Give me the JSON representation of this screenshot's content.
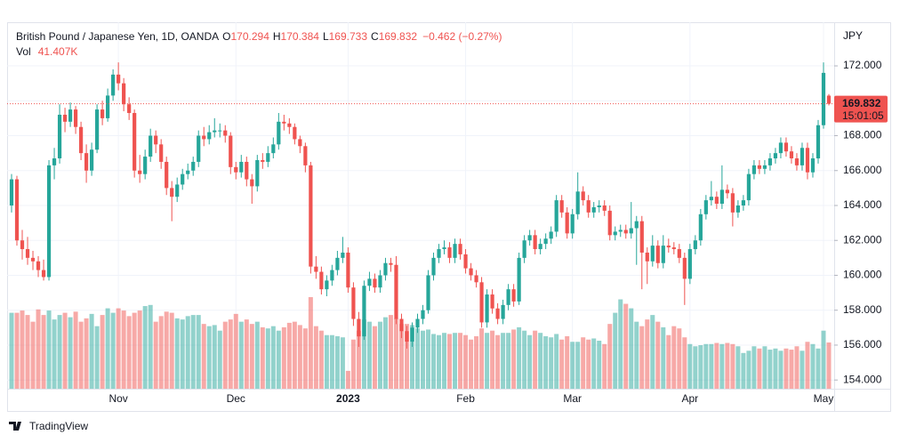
{
  "chart_data": {
    "type": "candlestick",
    "title": "British Pound / Japanese Yen, 1D, OANDA",
    "ohlc_letters": [
      "O",
      "H",
      "L",
      "C"
    ],
    "change_label": "−0.462 (−0.27%)",
    "volume_name": "Vol",
    "last_volume_label": "41.407K",
    "currency": "JPY",
    "countdown": "15:01:05",
    "up_color": "#26a69a",
    "down_color": "#ef5350",
    "ohlc": [
      [
        164.0,
        165.8,
        163.6,
        165.5
      ],
      [
        165.5,
        165.7,
        161.7,
        162.0
      ],
      [
        162.0,
        162.6,
        160.9,
        161.5
      ],
      [
        161.5,
        162.2,
        160.6,
        161.0
      ],
      [
        161.0,
        161.4,
        160.3,
        160.8
      ],
      [
        160.8,
        161.1,
        159.9,
        160.3
      ],
      [
        160.3,
        160.9,
        159.7,
        159.9
      ],
      [
        159.9,
        166.6,
        159.7,
        166.3
      ],
      [
        166.3,
        167.3,
        165.5,
        166.7
      ],
      [
        166.7,
        169.8,
        166.4,
        169.2
      ],
      [
        169.2,
        169.6,
        168.2,
        168.8
      ],
      [
        168.8,
        169.9,
        168.5,
        169.5
      ],
      [
        169.5,
        169.7,
        168.1,
        168.5
      ],
      [
        168.5,
        168.8,
        166.6,
        167.0
      ],
      [
        167.0,
        167.5,
        165.3,
        166.0
      ],
      [
        166.0,
        167.6,
        165.7,
        167.2
      ],
      [
        167.2,
        169.8,
        167.0,
        169.5
      ],
      [
        169.5,
        170.0,
        168.6,
        169.0
      ],
      [
        169.0,
        170.7,
        168.8,
        170.3
      ],
      [
        170.3,
        171.8,
        170.0,
        171.5
      ],
      [
        171.5,
        172.2,
        170.6,
        171.0
      ],
      [
        171.0,
        171.3,
        169.4,
        169.8
      ],
      [
        169.8,
        170.2,
        168.9,
        169.3
      ],
      [
        169.3,
        169.5,
        165.6,
        166.0
      ],
      [
        166.0,
        166.9,
        165.3,
        165.8
      ],
      [
        165.8,
        167.2,
        165.5,
        166.8
      ],
      [
        166.8,
        168.4,
        166.5,
        168.0
      ],
      [
        168.0,
        168.3,
        167.0,
        167.5
      ],
      [
        167.5,
        167.8,
        166.1,
        166.5
      ],
      [
        166.5,
        166.8,
        164.6,
        165.0
      ],
      [
        165.0,
        165.4,
        163.1,
        164.5
      ],
      [
        164.5,
        165.6,
        164.2,
        165.2
      ],
      [
        165.2,
        166.1,
        164.9,
        165.8
      ],
      [
        165.8,
        166.4,
        165.5,
        166.0
      ],
      [
        166.0,
        166.8,
        165.7,
        166.5
      ],
      [
        166.5,
        168.3,
        166.2,
        168.0
      ],
      [
        168.0,
        168.5,
        167.4,
        167.8
      ],
      [
        167.8,
        168.6,
        167.5,
        168.2
      ],
      [
        168.2,
        169.0,
        167.9,
        168.3
      ],
      [
        168.3,
        168.7,
        167.9,
        168.3
      ],
      [
        168.3,
        168.6,
        167.6,
        168.0
      ],
      [
        168.0,
        168.2,
        165.8,
        166.2
      ],
      [
        166.2,
        166.5,
        165.5,
        165.9
      ],
      [
        165.9,
        166.9,
        165.6,
        166.5
      ],
      [
        166.5,
        166.8,
        165.1,
        165.5
      ],
      [
        165.5,
        165.8,
        164.1,
        165.1
      ],
      [
        165.1,
        166.9,
        164.8,
        166.6
      ],
      [
        166.6,
        167.0,
        166.1,
        166.5
      ],
      [
        166.5,
        167.4,
        166.2,
        167.0
      ],
      [
        167.0,
        167.9,
        166.7,
        167.5
      ],
      [
        167.5,
        169.3,
        167.2,
        168.8
      ],
      [
        168.8,
        169.2,
        168.3,
        168.7
      ],
      [
        168.7,
        169.0,
        168.1,
        168.5
      ],
      [
        168.5,
        168.7,
        167.5,
        167.8
      ],
      [
        167.8,
        168.0,
        167.0,
        167.4
      ],
      [
        167.4,
        167.6,
        165.9,
        166.3
      ],
      [
        166.3,
        166.5,
        160.1,
        160.5
      ],
      [
        160.5,
        161.1,
        159.8,
        160.2
      ],
      [
        160.2,
        160.5,
        158.9,
        159.2
      ],
      [
        159.2,
        160.0,
        158.8,
        159.7
      ],
      [
        159.7,
        160.6,
        159.4,
        160.3
      ],
      [
        160.3,
        161.4,
        160.0,
        161.0
      ],
      [
        161.0,
        162.2,
        160.7,
        161.3
      ],
      [
        161.3,
        161.6,
        159.0,
        159.3
      ],
      [
        159.3,
        159.6,
        157.1,
        157.5
      ],
      [
        157.5,
        157.9,
        155.9,
        156.5
      ],
      [
        156.5,
        159.7,
        156.3,
        159.4
      ],
      [
        159.4,
        160.2,
        159.1,
        159.8
      ],
      [
        159.8,
        160.1,
        159.0,
        159.3
      ],
      [
        159.3,
        160.3,
        159.0,
        160.0
      ],
      [
        160.0,
        161.0,
        159.7,
        160.7
      ],
      [
        160.7,
        161.0,
        160.2,
        160.6
      ],
      [
        160.6,
        161.1,
        157.2,
        157.5
      ],
      [
        157.5,
        157.8,
        156.4,
        156.8
      ],
      [
        156.8,
        157.1,
        155.8,
        156.2
      ],
      [
        156.2,
        157.3,
        155.9,
        157.0
      ],
      [
        157.0,
        157.8,
        156.7,
        157.5
      ],
      [
        157.5,
        158.3,
        157.2,
        158.0
      ],
      [
        158.0,
        160.3,
        157.8,
        160.0
      ],
      [
        160.0,
        161.3,
        159.7,
        161.0
      ],
      [
        161.0,
        161.8,
        160.7,
        161.5
      ],
      [
        161.5,
        162.0,
        161.2,
        161.6
      ],
      [
        161.6,
        161.9,
        160.7,
        161.0
      ],
      [
        161.0,
        162.1,
        160.7,
        161.8
      ],
      [
        161.8,
        162.1,
        160.9,
        161.2
      ],
      [
        161.2,
        161.5,
        160.1,
        160.4
      ],
      [
        160.4,
        160.7,
        159.7,
        160.0
      ],
      [
        160.0,
        160.3,
        159.3,
        159.6
      ],
      [
        159.6,
        159.9,
        157.0,
        157.3
      ],
      [
        157.3,
        159.2,
        157.0,
        158.9
      ],
      [
        158.9,
        159.2,
        157.8,
        158.1
      ],
      [
        158.1,
        158.4,
        157.2,
        157.5
      ],
      [
        157.5,
        158.6,
        157.2,
        158.3
      ],
      [
        158.3,
        159.5,
        158.0,
        159.2
      ],
      [
        159.2,
        159.5,
        158.2,
        158.5
      ],
      [
        158.5,
        161.3,
        158.3,
        161.0
      ],
      [
        161.0,
        162.3,
        160.7,
        162.0
      ],
      [
        162.0,
        162.6,
        161.7,
        162.3
      ],
      [
        162.3,
        162.6,
        161.2,
        161.5
      ],
      [
        161.5,
        162.1,
        161.2,
        161.8
      ],
      [
        161.8,
        162.4,
        161.5,
        162.1
      ],
      [
        162.1,
        162.8,
        161.8,
        162.5
      ],
      [
        162.5,
        164.6,
        162.2,
        164.3
      ],
      [
        164.3,
        164.6,
        163.3,
        163.6
      ],
      [
        163.6,
        163.9,
        162.1,
        162.4
      ],
      [
        162.4,
        163.8,
        162.1,
        163.5
      ],
      [
        163.5,
        165.9,
        163.2,
        164.8
      ],
      [
        164.8,
        165.1,
        164.0,
        164.3
      ],
      [
        164.3,
        164.6,
        163.3,
        163.6
      ],
      [
        163.6,
        164.2,
        163.3,
        163.9
      ],
      [
        163.9,
        164.3,
        163.6,
        164.0
      ],
      [
        164.0,
        164.3,
        163.4,
        163.7
      ],
      [
        163.7,
        164.0,
        162.0,
        162.3
      ],
      [
        162.3,
        162.8,
        162.0,
        162.5
      ],
      [
        162.5,
        162.9,
        162.2,
        162.6
      ],
      [
        162.6,
        162.9,
        162.1,
        162.4
      ],
      [
        162.4,
        164.2,
        162.1,
        162.7
      ],
      [
        162.7,
        163.4,
        160.6,
        163.1
      ],
      [
        163.1,
        163.4,
        159.2,
        161.3
      ],
      [
        161.3,
        161.6,
        159.5,
        160.8
      ],
      [
        160.8,
        162.3,
        160.5,
        161.7
      ],
      [
        161.7,
        162.0,
        160.4,
        160.7
      ],
      [
        160.7,
        162.3,
        160.4,
        161.7
      ],
      [
        161.7,
        162.1,
        161.3,
        161.6
      ],
      [
        161.6,
        161.9,
        161.2,
        161.5
      ],
      [
        161.5,
        161.8,
        160.7,
        161.0
      ],
      [
        161.0,
        161.3,
        158.3,
        159.8
      ],
      [
        159.8,
        161.8,
        159.5,
        161.5
      ],
      [
        161.5,
        162.3,
        161.2,
        162.0
      ],
      [
        162.0,
        163.8,
        161.7,
        163.5
      ],
      [
        163.5,
        164.6,
        163.2,
        164.3
      ],
      [
        164.3,
        165.4,
        164.0,
        164.5
      ],
      [
        164.5,
        164.8,
        163.8,
        164.1
      ],
      [
        164.1,
        166.3,
        163.8,
        164.9
      ],
      [
        164.9,
        165.2,
        164.4,
        164.7
      ],
      [
        164.7,
        165.0,
        162.8,
        163.6
      ],
      [
        163.6,
        164.3,
        163.3,
        164.0
      ],
      [
        164.0,
        164.6,
        163.7,
        164.3
      ],
      [
        164.3,
        166.1,
        164.0,
        165.8
      ],
      [
        165.8,
        166.6,
        165.5,
        166.3
      ],
      [
        166.3,
        166.6,
        165.8,
        166.1
      ],
      [
        166.1,
        166.6,
        165.8,
        166.3
      ],
      [
        166.3,
        167.0,
        166.0,
        166.7
      ],
      [
        166.7,
        167.3,
        166.4,
        167.0
      ],
      [
        167.0,
        167.9,
        166.7,
        167.6
      ],
      [
        167.6,
        167.9,
        166.8,
        167.1
      ],
      [
        167.1,
        167.4,
        166.4,
        166.7
      ],
      [
        166.7,
        167.0,
        166.0,
        166.3
      ],
      [
        166.3,
        167.6,
        166.0,
        167.3
      ],
      [
        167.3,
        167.6,
        165.5,
        165.9
      ],
      [
        165.9,
        167.0,
        165.6,
        166.7
      ],
      [
        166.7,
        168.9,
        166.4,
        168.6
      ],
      [
        168.6,
        172.2,
        168.4,
        171.6
      ],
      [
        170.294,
        170.384,
        169.733,
        169.832
      ]
    ],
    "volume": [
      68,
      68,
      70,
      66,
      60,
      71,
      66,
      70,
      62,
      66,
      68,
      64,
      69,
      60,
      63,
      67,
      56,
      66,
      72,
      68,
      72,
      70,
      65,
      68,
      70,
      74,
      75,
      60,
      65,
      69,
      68,
      63,
      62,
      65,
      66,
      66,
      58,
      56,
      57,
      52,
      60,
      62,
      67,
      60,
      62,
      58,
      60,
      55,
      54,
      56,
      52,
      55,
      59,
      60,
      57,
      54,
      82,
      56,
      52,
      48,
      48,
      47,
      46,
      16,
      44,
      52,
      62,
      60,
      56,
      60,
      64,
      66,
      63,
      58,
      58,
      57,
      54,
      52,
      53,
      49,
      48,
      50,
      49,
      50,
      50,
      48,
      44,
      47,
      54,
      50,
      52,
      48,
      50,
      50,
      53,
      55,
      52,
      48,
      52,
      50,
      47,
      46,
      49,
      44,
      47,
      42,
      42,
      46,
      44,
      45,
      43,
      40,
      58,
      68,
      80,
      76,
      72,
      60,
      56,
      62,
      66,
      60,
      55,
      48,
      56,
      54,
      46,
      40,
      38,
      39,
      40,
      40,
      41,
      40,
      41,
      40,
      38,
      32,
      34,
      38,
      36,
      38,
      35,
      36,
      34,
      36,
      35,
      38,
      34,
      42,
      40,
      36,
      52,
      41.407
    ],
    "ylim": [
      153.5,
      174.5
    ],
    "yticks": [
      {
        "value": 154,
        "label": "154.000"
      },
      {
        "value": 156,
        "label": "156.000"
      },
      {
        "value": 158,
        "label": "158.000"
      },
      {
        "value": 160,
        "label": "160.000"
      },
      {
        "value": 162,
        "label": "162.000"
      },
      {
        "value": 164,
        "label": "164.000"
      },
      {
        "value": 166,
        "label": "166.000"
      },
      {
        "value": 168,
        "label": "168.000"
      },
      {
        "value": 170,
        "label": "170.000"
      },
      {
        "value": 172,
        "label": "172.000"
      }
    ],
    "xticks": [
      {
        "value": 20,
        "label": "Nov"
      },
      {
        "value": 42,
        "label": "Dec"
      },
      {
        "value": 63,
        "label": "2023"
      },
      {
        "value": 85,
        "label": "Feb"
      },
      {
        "value": 105,
        "label": "Mar"
      },
      {
        "value": 127,
        "label": "Apr"
      },
      {
        "value": 152,
        "label": "May"
      }
    ],
    "grid": true
  },
  "brand": "TradingView"
}
